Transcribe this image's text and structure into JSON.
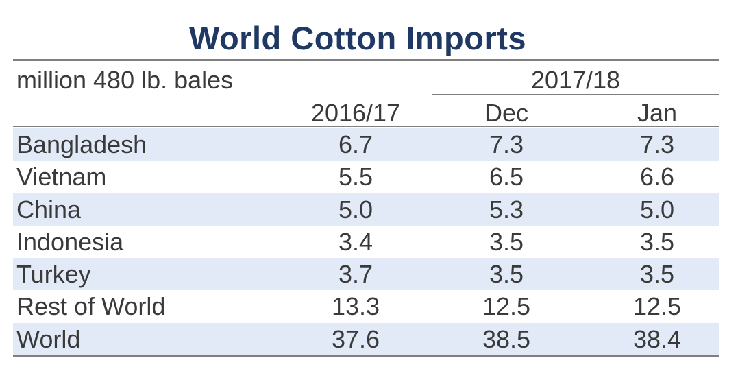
{
  "chart_data": {
    "type": "table",
    "title": "World Cotton Imports",
    "unit_label": "million 480 lb. bales",
    "group_header": "2017/18",
    "columns": [
      "2016/17",
      "Dec",
      "Jan"
    ],
    "rows": [
      {
        "country": "Bangladesh",
        "values": [
          "6.7",
          "7.3",
          "7.3"
        ]
      },
      {
        "country": "Vietnam",
        "values": [
          "5.5",
          "6.5",
          "6.6"
        ]
      },
      {
        "country": "China",
        "values": [
          "5.0",
          "5.3",
          "5.0"
        ]
      },
      {
        "country": "Indonesia",
        "values": [
          "3.4",
          "3.5",
          "3.5"
        ]
      },
      {
        "country": "Turkey",
        "values": [
          "3.7",
          "3.5",
          "3.5"
        ]
      },
      {
        "country": "Rest of World",
        "values": [
          "13.3",
          "12.5",
          "12.5"
        ]
      },
      {
        "country": "World",
        "values": [
          "37.6",
          "38.5",
          "38.4"
        ]
      }
    ]
  },
  "colors": {
    "title": "#1f3864",
    "text": "#3a3a3a",
    "band": "#e1eaf6",
    "rule": "#7f7f7f"
  }
}
